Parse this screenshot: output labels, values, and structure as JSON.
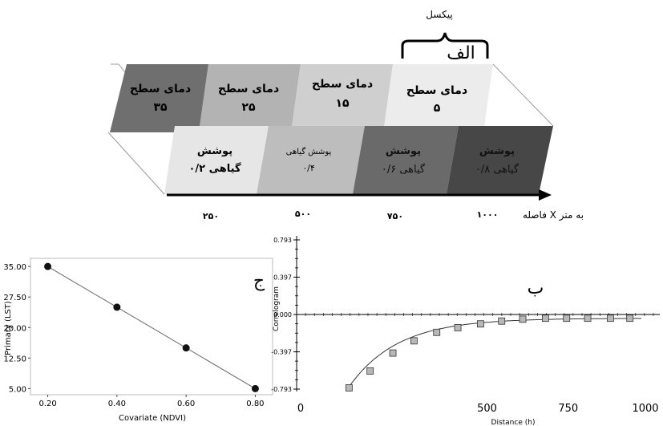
{
  "diagram": {
    "pixel_label": "پیکسل",
    "label_alef": "الف",
    "label_be": "ب",
    "label_jim": "ج",
    "upper_row": [
      {
        "title": "دمای سطح",
        "value": "۳۵",
        "fill": "#6f6f6f"
      },
      {
        "title": "دمای سطح",
        "value": "۲۵",
        "fill": "#b3b3b3"
      },
      {
        "title": "دمای سطح",
        "value": "۱۵",
        "fill": "#cfcfcf"
      },
      {
        "title": "دمای سطح",
        "value": "۵",
        "fill": "#ececec"
      }
    ],
    "lower_row": [
      {
        "line1": "پوشش",
        "line2": "گیاهی ۰/۲",
        "fill": "#e6e6e6"
      },
      {
        "line1": "پوشش گیاهی",
        "line2": "۰/۴",
        "fill": "#bdbdbd"
      },
      {
        "line1": "پوشش",
        "line2": "گیاهی ۰/۶",
        "fill": "#6a6a6a"
      },
      {
        "line1": "پوشش",
        "line2": "گیاهی ۰/۸",
        "fill": "#474747"
      }
    ],
    "axis_ticks": [
      "۲۵۰",
      "۵۰۰",
      "۷۵۰",
      "۱۰۰۰"
    ],
    "axis_label": "فاصله X به متر"
  },
  "chart_data": [
    {
      "type": "scatter",
      "xlabel": "Covariate (NDVI)",
      "ylabel": "Primary (LST)",
      "x": [
        0.2,
        0.4,
        0.6,
        0.8
      ],
      "y": [
        35,
        25,
        15,
        5
      ],
      "xlim": [
        0.15,
        0.85
      ],
      "ylim": [
        3.5,
        37
      ],
      "xticks": [
        "0.20",
        "0.40",
        "0.60",
        "0.80"
      ],
      "yticks": [
        "5.00",
        "12.50",
        "20.00",
        "27.50",
        "35.00"
      ],
      "trend_line": true
    },
    {
      "type": "scatter",
      "xlabel": "Distance (h)",
      "ylabel": "Correlogram",
      "x": [
        75,
        140,
        210,
        275,
        345,
        410,
        480,
        545,
        610,
        680,
        745,
        810,
        880,
        940
      ],
      "y": [
        -0.78,
        -0.6,
        -0.41,
        -0.28,
        -0.19,
        -0.14,
        -0.1,
        -0.07,
        -0.05,
        -0.04,
        -0.04,
        -0.04,
        -0.04,
        -0.04
      ],
      "xlim": [
        0,
        1000
      ],
      "ylim": [
        -0.793,
        0.793
      ],
      "xticks": [
        "0",
        "500",
        "750",
        "1000"
      ],
      "yticks": [
        "0.793",
        "0.397",
        "0.000",
        "-0.397",
        "-0.793"
      ],
      "model_curve": true
    }
  ]
}
